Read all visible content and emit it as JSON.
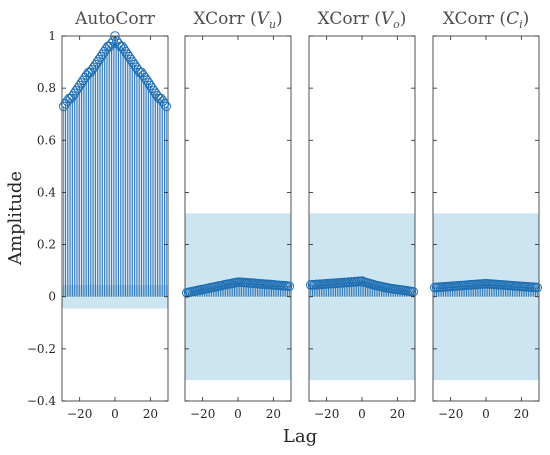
{
  "figure": {
    "ylabel": "Amplitude",
    "xlabel": "Lag"
  },
  "colors": {
    "stem": "#1f6fb4",
    "band": "#bcdbec",
    "axes": "#262626",
    "title": "#4d4d4d"
  },
  "chart_data": [
    {
      "type": "stem",
      "title": "AutoCorr",
      "xlim": [
        -30,
        30
      ],
      "ylim": [
        -0.4,
        1.0
      ],
      "yticks": [
        "1",
        "0.8",
        "0.6",
        "0.4",
        "0.2",
        "0",
        "-0.2",
        "-0.4"
      ],
      "ytick_values": [
        1.0,
        0.8,
        0.6,
        0.4,
        0.2,
        0.0,
        -0.2,
        -0.4
      ],
      "xticks": [
        "-20",
        "0",
        "20"
      ],
      "xtick_values": [
        -20,
        0,
        20
      ],
      "confidence_band": [
        -0.045,
        0.045
      ],
      "lag_range": [
        -29,
        29
      ],
      "values": [
        0.73,
        0.74,
        0.75,
        0.76,
        0.76,
        0.77,
        0.78,
        0.79,
        0.8,
        0.81,
        0.82,
        0.83,
        0.84,
        0.85,
        0.86,
        0.86,
        0.87,
        0.88,
        0.89,
        0.9,
        0.91,
        0.92,
        0.93,
        0.94,
        0.95,
        0.96,
        0.96,
        0.97,
        0.98,
        1.0,
        0.98,
        0.97,
        0.96,
        0.96,
        0.95,
        0.94,
        0.93,
        0.92,
        0.91,
        0.9,
        0.89,
        0.88,
        0.87,
        0.86,
        0.86,
        0.85,
        0.84,
        0.83,
        0.82,
        0.81,
        0.8,
        0.79,
        0.78,
        0.77,
        0.76,
        0.76,
        0.75,
        0.74,
        0.73
      ]
    },
    {
      "type": "stem",
      "title": "XCorr (V_u)",
      "title_main": "XCorr (",
      "title_var": "V",
      "title_sub": "u",
      "title_close": ")",
      "xlim": [
        -30,
        30
      ],
      "ylim": [
        -0.4,
        1.0
      ],
      "xticks": [
        "-20",
        "0",
        "20"
      ],
      "xtick_values": [
        -20,
        0,
        20
      ],
      "confidence_band": [
        -0.32,
        0.32
      ],
      "lag_range": [
        -29,
        29
      ],
      "values": [
        0.015,
        0.017,
        0.018,
        0.02,
        0.021,
        0.022,
        0.024,
        0.025,
        0.027,
        0.028,
        0.029,
        0.031,
        0.032,
        0.034,
        0.035,
        0.036,
        0.038,
        0.039,
        0.041,
        0.042,
        0.043,
        0.045,
        0.046,
        0.048,
        0.049,
        0.05,
        0.052,
        0.053,
        0.055,
        0.056,
        0.056,
        0.055,
        0.055,
        0.054,
        0.054,
        0.053,
        0.053,
        0.052,
        0.052,
        0.051,
        0.05,
        0.05,
        0.049,
        0.049,
        0.048,
        0.048,
        0.047,
        0.047,
        0.046,
        0.045,
        0.045,
        0.044,
        0.044,
        0.043,
        0.043,
        0.042,
        0.042,
        0.041,
        0.04
      ]
    },
    {
      "type": "stem",
      "title": "XCorr (V_o)",
      "title_main": "XCorr (",
      "title_var": "V",
      "title_sub": "o",
      "title_close": ")",
      "xlim": [
        -30,
        30
      ],
      "ylim": [
        -0.4,
        1.0
      ],
      "xticks": [
        "-20",
        "0",
        "20"
      ],
      "xtick_values": [
        -20,
        0,
        20
      ],
      "confidence_band": [
        -0.32,
        0.32
      ],
      "lag_range": [
        -29,
        29
      ],
      "values": [
        0.045,
        0.046,
        0.045,
        0.047,
        0.046,
        0.048,
        0.047,
        0.049,
        0.048,
        0.05,
        0.049,
        0.051,
        0.05,
        0.052,
        0.051,
        0.053,
        0.052,
        0.054,
        0.053,
        0.055,
        0.054,
        0.056,
        0.055,
        0.057,
        0.056,
        0.058,
        0.057,
        0.059,
        0.058,
        0.06,
        0.057,
        0.055,
        0.053,
        0.051,
        0.049,
        0.047,
        0.045,
        0.043,
        0.042,
        0.04,
        0.039,
        0.037,
        0.036,
        0.034,
        0.033,
        0.032,
        0.031,
        0.03,
        0.029,
        0.028,
        0.027,
        0.026,
        0.025,
        0.024,
        0.023,
        0.022,
        0.021,
        0.02,
        0.019
      ]
    },
    {
      "type": "stem",
      "title": "XCorr (C_i)",
      "title_main": "XCorr (",
      "title_var": "C",
      "title_sub": "i",
      "title_close": ")",
      "xlim": [
        -30,
        30
      ],
      "ylim": [
        -0.4,
        1.0
      ],
      "xticks": [
        "-20",
        "0",
        "20"
      ],
      "xtick_values": [
        -20,
        0,
        20
      ],
      "confidence_band": [
        -0.32,
        0.32
      ],
      "lag_range": [
        -29,
        29
      ],
      "values": [
        0.035,
        0.036,
        0.036,
        0.037,
        0.037,
        0.038,
        0.038,
        0.039,
        0.039,
        0.04,
        0.04,
        0.041,
        0.041,
        0.042,
        0.042,
        0.043,
        0.043,
        0.044,
        0.044,
        0.045,
        0.045,
        0.046,
        0.046,
        0.047,
        0.047,
        0.048,
        0.048,
        0.049,
        0.049,
        0.05,
        0.049,
        0.049,
        0.048,
        0.048,
        0.047,
        0.047,
        0.046,
        0.046,
        0.045,
        0.045,
        0.044,
        0.044,
        0.043,
        0.043,
        0.042,
        0.042,
        0.041,
        0.041,
        0.04,
        0.04,
        0.039,
        0.039,
        0.038,
        0.038,
        0.037,
        0.037,
        0.036,
        0.036,
        0.035
      ]
    }
  ]
}
